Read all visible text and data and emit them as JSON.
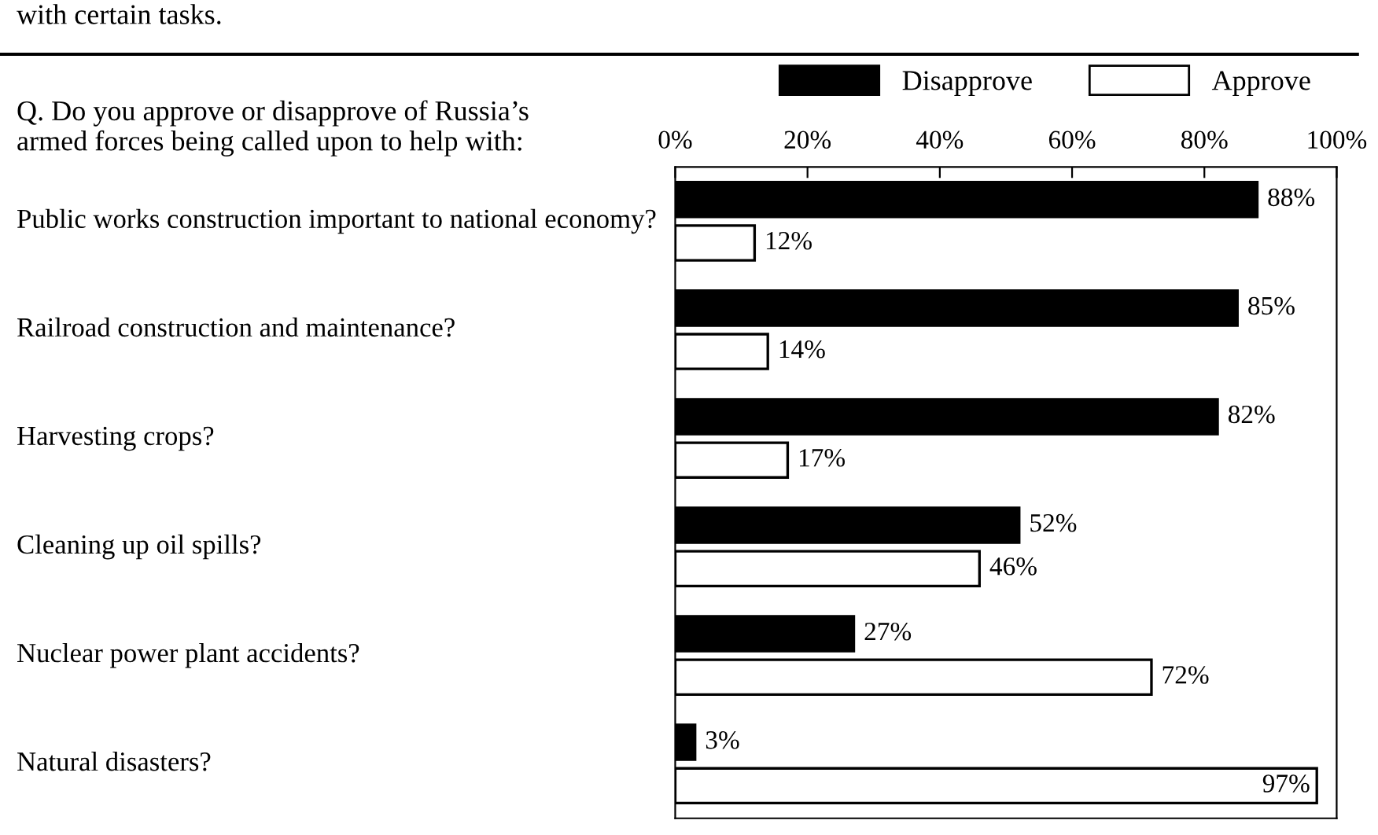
{
  "chart_data": {
    "type": "bar",
    "orientation": "horizontal",
    "title": "Q. Do you approve or disapprove of Russia’s armed forces being called upon to help with:",
    "annotations": [
      "with certain tasks."
    ],
    "categories": [
      "Public works construction important to national economy?",
      "Railroad construction and maintenance?",
      "Harvesting crops?",
      "Cleaning up oil spills?",
      "Nuclear power plant accidents?",
      "Natural disasters?"
    ],
    "series": [
      {
        "name": "Disapprove",
        "color": "#000000",
        "values": [
          88,
          85,
          82,
          52,
          27,
          3
        ],
        "value_labels": [
          "88%",
          "85%",
          "82%",
          "52%",
          "27%",
          "3%"
        ]
      },
      {
        "name": "Approve",
        "color": "#ffffff",
        "values": [
          12,
          14,
          17,
          46,
          72,
          97
        ],
        "value_labels": [
          "12%",
          "14%",
          "17%",
          "46%",
          "72%",
          "97%"
        ]
      }
    ],
    "xlim": [
      0,
      100
    ],
    "xticks": [
      {
        "value": 0,
        "label": "0%"
      },
      {
        "value": 20,
        "label": "20%"
      },
      {
        "value": 40,
        "label": "40%"
      },
      {
        "value": 60,
        "label": "60%"
      },
      {
        "value": 80,
        "label": "80%"
      },
      {
        "value": 100,
        "label": "100%"
      }
    ],
    "legend": "top right",
    "grid": false
  }
}
